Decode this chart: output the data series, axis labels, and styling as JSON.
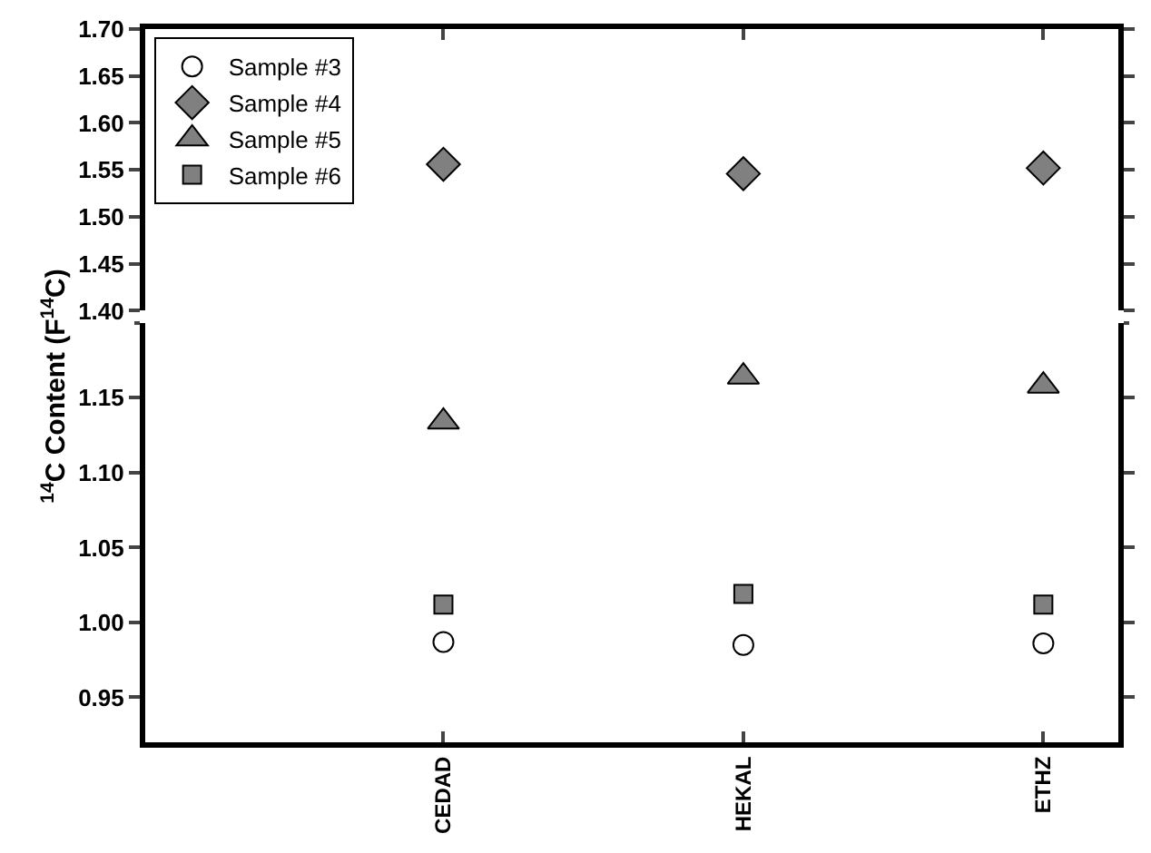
{
  "chart_data": [
    {
      "type": "scatter",
      "ylim": [
        1.4,
        1.7
      ],
      "yticks": [
        {
          "value": 1.4,
          "label": "1.40"
        },
        1.45,
        {
          "value": 1.5,
          "label": "1.50"
        },
        1.55,
        {
          "value": 1.6,
          "label": "1.60"
        },
        1.65,
        {
          "value": 1.7,
          "label": "1.70"
        }
      ],
      "tick_labels": "y",
      "legend": "top left",
      "series": [
        {
          "name": "Sample #3",
          "color": "#ffffff",
          "marker": "circle",
          "values": [
            null,
            null,
            null
          ]
        },
        {
          "name": "Sample #4",
          "color": "#808080",
          "marker": "diamond",
          "values": [
            1.556,
            1.546,
            1.552
          ]
        },
        {
          "name": "Sample #5",
          "color": "#808080",
          "marker": "triangle",
          "values": [
            null,
            null,
            null
          ]
        },
        {
          "name": "Sample #6",
          "color": "#808080",
          "marker": "square",
          "values": [
            null,
            null,
            null
          ]
        }
      ]
    },
    {
      "type": "scatter",
      "categories": [
        "CEDAD",
        "HEKAL",
        "ETHZ"
      ],
      "ylabel": "$^{14}$C Content (F$^{14}$C)",
      "ylim": [
        0.92,
        1.2
      ],
      "yticks": [
        0.95,
        {
          "value": 1.0,
          "label": "1.00"
        },
        1.05,
        {
          "value": 1.1,
          "label": "1.10"
        },
        1.15
      ],
      "series": [
        {
          "color": "#ffffff",
          "marker": "circle",
          "values": [
            0.987,
            0.985,
            0.986
          ]
        },
        {
          "color": "#808080",
          "marker": "triangle",
          "values": [
            1.134,
            1.164,
            1.158
          ]
        },
        {
          "color": "#808080",
          "marker": "square",
          "values": [
            1.012,
            1.019,
            1.012
          ]
        }
      ]
    }
  ]
}
